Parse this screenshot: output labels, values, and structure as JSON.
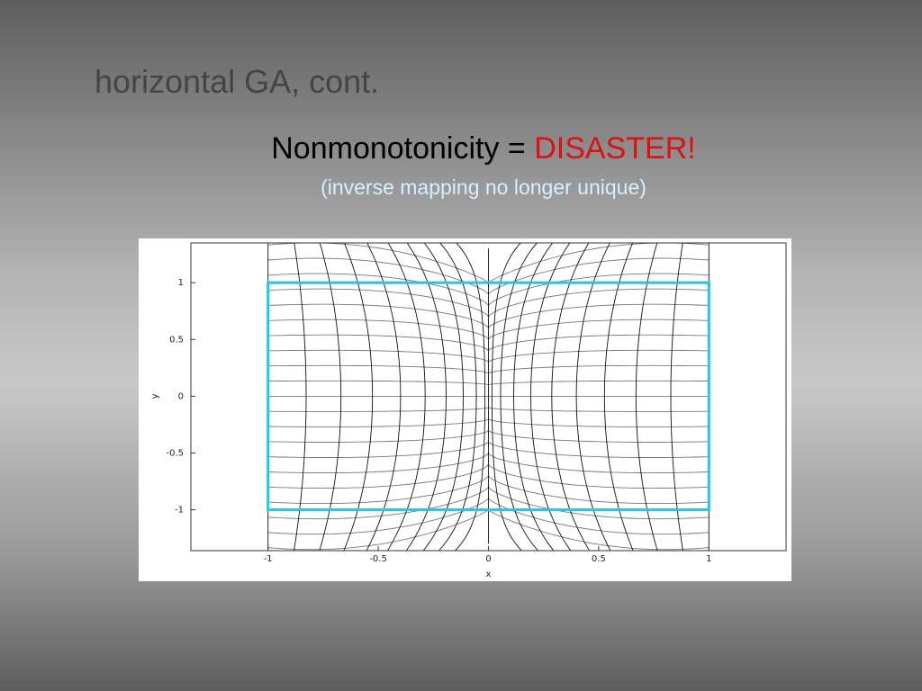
{
  "slide": {
    "title": "horizontal GA, cont.",
    "heading": "Nonmonotonicity =",
    "heading_emphasis": "DISASTER!",
    "subtitle": "(inverse mapping no longer unique)"
  },
  "chart_data": {
    "type": "mesh",
    "x_label": "x",
    "y_label": "y",
    "xlim": [
      -1.35,
      1.35
    ],
    "ylim": [
      -1.36,
      1.35
    ],
    "xticks": [
      -1,
      -0.5,
      0,
      0.5,
      1
    ],
    "yticks": [
      -1,
      -0.5,
      0,
      0.5,
      1
    ],
    "box_color": "#1ec8f0"
  }
}
